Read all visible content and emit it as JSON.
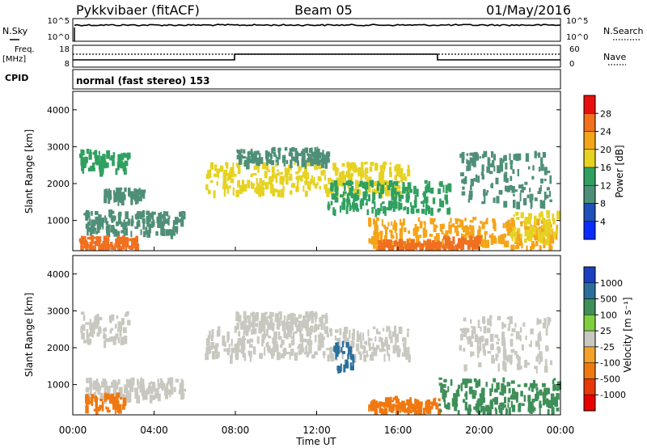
{
  "header": {
    "station": "Pykkvibaer (fitACF)",
    "beam": "Beam 05",
    "date": "01/May/2016"
  },
  "top_panels": {
    "nsky_label": "N.Sky",
    "nsky_ticks": [
      "10^5",
      "10^0"
    ],
    "nsearch_label": "N.Search",
    "nsearch_ticks": [
      "10^5",
      "10^0"
    ],
    "freq_label": [
      "Freq.",
      "[MHz]"
    ],
    "freq_ticks": [
      "18",
      "8"
    ],
    "nave_label": "Nave",
    "nave_ticks": [
      "60",
      "0"
    ],
    "cpid_label": "CPID",
    "cpid_value": "normal (fast stereo) 153"
  },
  "chart_data": [
    {
      "type": "heatmap",
      "name": "power",
      "ylabel": "Slant Range [km]",
      "yticks": [
        "4000",
        "3000",
        "2000",
        "1000"
      ],
      "ylim": [
        180,
        4500
      ],
      "xlim_hours": [
        0,
        24
      ],
      "colorbar_label": "Power [dB]",
      "colorbar_ticks": [
        "28",
        "24",
        "20",
        "16",
        "12",
        "8",
        "4"
      ],
      "colorbar_colors": [
        "#e8100c",
        "#f07020",
        "#f4a418",
        "#e6d220",
        "#30a060",
        "#4f8f78",
        "#1f4fb8",
        "#0a2dff"
      ],
      "echo_regions": [
        {
          "t0": 0.3,
          "t1": 2.7,
          "r0": 2400,
          "r1": 2950,
          "level": 14
        },
        {
          "t0": 0.5,
          "t1": 5.5,
          "r0": 700,
          "r1": 1300,
          "level": 10
        },
        {
          "t0": 0.3,
          "t1": 3.2,
          "r0": 300,
          "r1": 600,
          "level": 24
        },
        {
          "t0": 1.5,
          "t1": 3.5,
          "r0": 1600,
          "r1": 1900,
          "level": 8
        },
        {
          "t0": 6.5,
          "t1": 16.5,
          "r0": 1800,
          "r1": 2600,
          "level": 15
        },
        {
          "t0": 8.0,
          "t1": 12.5,
          "r0": 2600,
          "r1": 3000,
          "level": 10
        },
        {
          "t0": 12.5,
          "t1": 18.5,
          "r0": 1300,
          "r1": 2100,
          "level": 14
        },
        {
          "t0": 14.5,
          "t1": 24.0,
          "r0": 300,
          "r1": 1100,
          "level": 20
        },
        {
          "t0": 15.0,
          "t1": 18.0,
          "r0": 300,
          "r1": 500,
          "level": 26
        },
        {
          "t0": 18.0,
          "t1": 20.0,
          "r0": 300,
          "r1": 600,
          "level": 26
        },
        {
          "t0": 19.0,
          "t1": 23.5,
          "r0": 1500,
          "r1": 2900,
          "level": 9
        },
        {
          "t0": 21.5,
          "t1": 24.0,
          "r0": 500,
          "r1": 1300,
          "level": 17
        }
      ]
    },
    {
      "type": "heatmap",
      "name": "velocity",
      "ylabel": "Slant Range [km]",
      "yticks": [
        "4000",
        "3000",
        "2000",
        "1000"
      ],
      "ylim": [
        180,
        4500
      ],
      "xlim_hours": [
        0,
        24
      ],
      "colorbar_label": "Velocity [m s⁻¹]",
      "colorbar_ticks": [
        "1000",
        "500",
        "100",
        "25",
        "-25",
        "-100",
        "-500",
        "-1000"
      ],
      "colorbar_colors": [
        "#1b3fc0",
        "#2a6f9c",
        "#3e8f58",
        "#7ed040",
        "#c8c8c0",
        "#f5a028",
        "#f07810",
        "#e83808",
        "#e80000"
      ],
      "echo_regions": [
        {
          "t0": 0.3,
          "t1": 2.7,
          "r0": 2200,
          "r1": 3000,
          "level": 0
        },
        {
          "t0": 0.5,
          "t1": 5.5,
          "r0": 700,
          "r1": 1200,
          "level": 0
        },
        {
          "t0": 0.5,
          "t1": 2.5,
          "r0": 300,
          "r1": 800,
          "level": -500
        },
        {
          "t0": 6.5,
          "t1": 16.5,
          "r0": 1800,
          "r1": 2600,
          "level": 0
        },
        {
          "t0": 8.0,
          "t1": 12.5,
          "r0": 2600,
          "r1": 3000,
          "level": 0
        },
        {
          "t0": 12.8,
          "t1": 13.8,
          "r0": 1500,
          "r1": 2200,
          "level": 500
        },
        {
          "t0": 14.5,
          "t1": 18.0,
          "r0": 300,
          "r1": 700,
          "level": -500
        },
        {
          "t0": 18.0,
          "t1": 24.0,
          "r0": 300,
          "r1": 1200,
          "level": 100
        },
        {
          "t0": 19.0,
          "t1": 23.5,
          "r0": 1500,
          "r1": 2900,
          "level": 0
        }
      ]
    }
  ],
  "xaxis": {
    "ticks": [
      "00:00",
      "04:00",
      "08:00",
      "12:00",
      "16:00",
      "20:00",
      "00:00"
    ],
    "label": "Time UT"
  }
}
